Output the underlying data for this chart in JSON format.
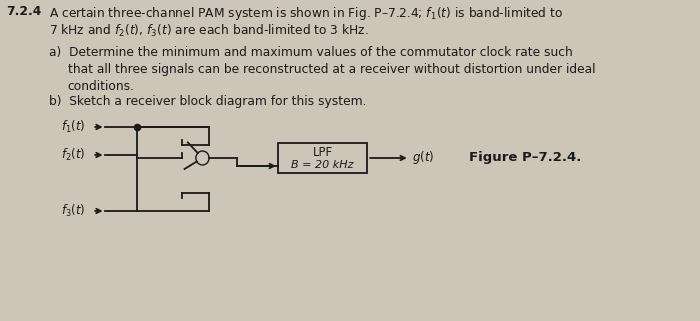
{
  "bg_color": "#ccc5b8",
  "text_color": "#1a1a1a",
  "fig_label": "Figure P–7.2.4.",
  "lpf_line1": "LPF",
  "lpf_line2": "B = 20 kHz"
}
